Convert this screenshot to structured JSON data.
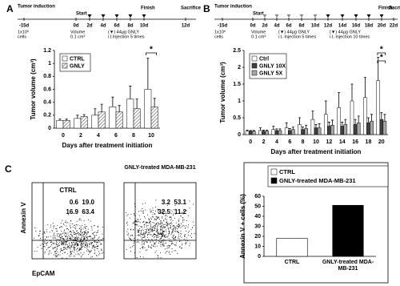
{
  "panels": {
    "A": {
      "letter": "A",
      "timeline": {
        "induction": "Tumor induction",
        "start": "Start",
        "finish": "Finish",
        "sacrifice": "Sacrifice",
        "days": [
          "-15d",
          "0d",
          "2d",
          "4d",
          "6d",
          "8d",
          "10d",
          "12d"
        ],
        "notes": [
          [
            "1x10⁶",
            "cells"
          ],
          [
            "Volume",
            "0.1 cm³"
          ],
          [
            "(▼) 44µg GNLY",
            "i.t.Injection 5 times"
          ]
        ]
      }
    },
    "B": {
      "letter": "B",
      "timeline": {
        "induction": "Tumor induction",
        "start": "Start",
        "finish": "Finish",
        "sacrifice": "Sacrifice",
        "days": [
          "-15d",
          "0d",
          "2d",
          "4d",
          "6d",
          "8d",
          "10d",
          "12d",
          "14d",
          "16d",
          "18d",
          "20d",
          "22d"
        ],
        "notes": [
          [
            "1x10⁶",
            "cells"
          ],
          [
            "Volume",
            "0.1 cm³"
          ],
          [
            "(▼) 44µg GNLY",
            "i.t. Injection 5 times"
          ],
          [
            "(▼) 44µg GNLY",
            "i.t. Injection 10 times"
          ]
        ]
      }
    },
    "C": {
      "letter": "C",
      "ylabel": "Annexin V",
      "xlabel": "EpCAM",
      "flow": [
        {
          "title": "CTRL",
          "quadrants": [
            "0.6",
            "19.0",
            "16.9",
            "63.4"
          ]
        },
        {
          "title": "GNLY-treated MDA-MB-231",
          "quadrants": [
            "3.2",
            "53.1",
            "32.5",
            "11.2"
          ]
        }
      ]
    }
  },
  "chart_data": [
    {
      "type": "bar",
      "ylabel": "Tumor volume (cm³)",
      "xlabel": "Days after treatment initiation",
      "categories": [
        "0",
        "2",
        "4",
        "6",
        "8",
        "10"
      ],
      "series": [
        {
          "name": "CTRL",
          "color": "#ffffff",
          "values": [
            0.12,
            0.15,
            0.2,
            0.33,
            0.45,
            0.6
          ],
          "errors": [
            0.02,
            0.05,
            0.1,
            0.15,
            0.2,
            0.48
          ]
        },
        {
          "name": "GNLY",
          "color": "#ffffff",
          "hatch": true,
          "values": [
            0.12,
            0.18,
            0.25,
            0.25,
            0.3,
            0.33
          ],
          "errors": [
            0.02,
            0.03,
            0.12,
            0.1,
            0.15,
            0.13
          ]
        }
      ],
      "ylim": [
        0,
        1.2
      ],
      "yticks": [
        0,
        0.2,
        0.4,
        0.6,
        0.8,
        1,
        1.2
      ],
      "legend": "upper left",
      "annotations": [
        "*"
      ]
    },
    {
      "type": "bar",
      "ylabel": "Tumor volume (cm³)",
      "xlabel": "Days after treatment initiation",
      "categories": [
        "0",
        "2",
        "4",
        "6",
        "8",
        "10",
        "12",
        "14",
        "16",
        "18",
        "20"
      ],
      "series": [
        {
          "name": "Ctrl",
          "color": "#ffffff",
          "values": [
            0.1,
            0.12,
            0.15,
            0.2,
            0.3,
            0.45,
            0.6,
            0.8,
            1.0,
            1.1,
            1.6
          ],
          "errors": [
            0.03,
            0.08,
            0.1,
            0.15,
            0.2,
            0.25,
            0.4,
            0.45,
            0.5,
            0.6,
            0.7
          ]
        },
        {
          "name": "GNLY 10X",
          "color": "#404040",
          "values": [
            0.1,
            0.1,
            0.12,
            0.12,
            0.15,
            0.2,
            0.25,
            0.25,
            0.3,
            0.35,
            0.45
          ],
          "errors": [
            0.02,
            0.03,
            0.05,
            0.06,
            0.08,
            0.1,
            0.12,
            0.12,
            0.15,
            0.15,
            0.2
          ]
        },
        {
          "name": "GNLY 5X",
          "color": "#a6a6a6",
          "values": [
            0.1,
            0.1,
            0.12,
            0.15,
            0.18,
            0.2,
            0.28,
            0.3,
            0.35,
            0.4,
            0.4
          ],
          "errors": [
            0.02,
            0.03,
            0.05,
            0.07,
            0.1,
            0.12,
            0.15,
            0.15,
            0.2,
            0.2,
            0.2
          ]
        }
      ],
      "ylim": [
        0,
        2.5
      ],
      "yticks": [
        0,
        0.5,
        1,
        1.5,
        2,
        2.5
      ],
      "legend": "upper left",
      "annotations": [
        "*",
        "*"
      ]
    },
    {
      "type": "bar",
      "ylabel": "Annexin V + cells (%)",
      "categories": [
        "CTRL",
        "GNLY-treated MDA-MB-231"
      ],
      "values": [
        18,
        51
      ],
      "colors": [
        "#ffffff",
        "#000000"
      ],
      "ylim": [
        0,
        60
      ],
      "yticks": [
        0,
        10,
        20,
        30,
        40,
        50,
        60
      ],
      "legend": "top"
    }
  ]
}
